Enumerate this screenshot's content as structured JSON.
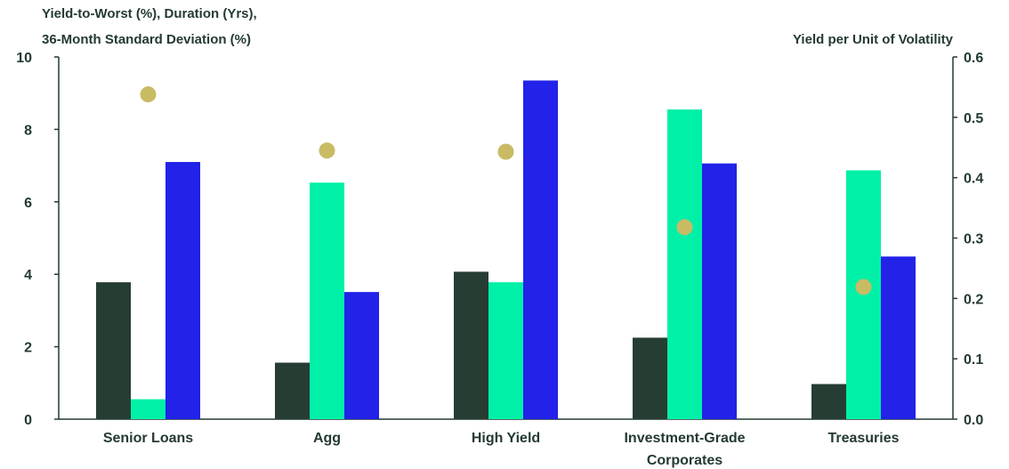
{
  "chart_data": {
    "type": "bar",
    "left_axis_title_line1": "Yield-to-Worst (%), Duration (Yrs),",
    "left_axis_title_line2": "36-Month Standard Deviation (%)",
    "right_axis_title": "Yield per Unit of Volatility",
    "categories": [
      [
        "Senior Loans"
      ],
      [
        "Agg"
      ],
      [
        "High Yield"
      ],
      [
        "Investment-Grade",
        "Corporates"
      ],
      [
        "Treasuries"
      ]
    ],
    "series": [
      {
        "axis": "left",
        "kind": "bar",
        "color": "#263d33",
        "values": [
          3.78,
          1.56,
          4.07,
          2.25,
          0.97
        ]
      },
      {
        "axis": "left",
        "kind": "bar",
        "color": "#00f0a8",
        "values": [
          0.55,
          6.53,
          3.78,
          8.55,
          6.87
        ]
      },
      {
        "axis": "left",
        "kind": "bar",
        "color": "#2222e8",
        "values": [
          7.1,
          3.51,
          9.35,
          7.06,
          4.49
        ]
      },
      {
        "axis": "right",
        "kind": "scatter",
        "color": "#c8bb64",
        "values": [
          0.538,
          0.445,
          0.443,
          0.318,
          0.219
        ]
      }
    ],
    "left_axis": {
      "min": 0,
      "max": 10,
      "ticks": [
        "0",
        "2",
        "4",
        "6",
        "8",
        "10"
      ]
    },
    "right_axis": {
      "min": 0,
      "max": 0.6,
      "ticks": [
        "0.0",
        "0.1",
        "0.2",
        "0.3",
        "0.4",
        "0.5",
        "0.6"
      ]
    },
    "grid": false
  }
}
